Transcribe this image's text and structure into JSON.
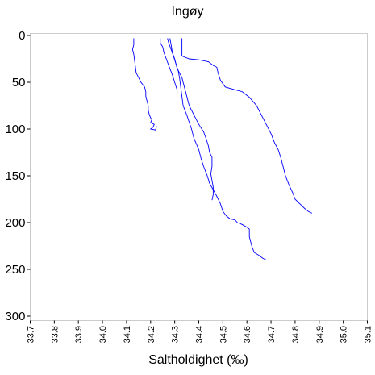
{
  "chart_data": {
    "type": "line",
    "title": "Ingøy",
    "xlabel": "Saltholdighet (‰)",
    "ylabel": "",
    "xlim": [
      33.7,
      35.1
    ],
    "ylim": [
      0,
      300
    ],
    "y_inverted": true,
    "x_ticks": [
      "33.7",
      "33.8",
      "33.9",
      "34.0",
      "34.1",
      "34.2",
      "34.3",
      "34.4",
      "34.5",
      "34.6",
      "34.7",
      "34.8",
      "34.9",
      "35.0",
      "35.1"
    ],
    "y_ticks": [
      "0",
      "50",
      "100",
      "150",
      "200",
      "250",
      "300"
    ],
    "grid": false,
    "legend": "none",
    "line_color": "#0000ff",
    "series": [
      {
        "points": [
          [
            34.13,
            3
          ],
          [
            34.13,
            10
          ],
          [
            34.125,
            15
          ],
          [
            34.13,
            20
          ],
          [
            34.135,
            30
          ],
          [
            34.14,
            40
          ],
          [
            34.15,
            45
          ],
          [
            34.16,
            50
          ],
          [
            34.175,
            55
          ],
          [
            34.18,
            60
          ],
          [
            34.18,
            65
          ],
          [
            34.185,
            70
          ],
          [
            34.19,
            75
          ],
          [
            34.19,
            80
          ],
          [
            34.195,
            85
          ],
          [
            34.2,
            88
          ],
          [
            34.205,
            90
          ],
          [
            34.2,
            93
          ],
          [
            34.215,
            95
          ],
          [
            34.21,
            98
          ],
          [
            34.2,
            100
          ],
          [
            34.22,
            101
          ],
          [
            34.225,
            97
          ]
        ]
      },
      {
        "points": [
          [
            34.24,
            3
          ],
          [
            34.24,
            8
          ],
          [
            34.25,
            12
          ],
          [
            34.255,
            18
          ],
          [
            34.265,
            25
          ],
          [
            34.275,
            32
          ],
          [
            34.29,
            42
          ],
          [
            34.3,
            50
          ],
          [
            34.31,
            58
          ],
          [
            34.31,
            62
          ]
        ]
      },
      {
        "points": [
          [
            34.27,
            3
          ],
          [
            34.275,
            8
          ],
          [
            34.285,
            15
          ],
          [
            34.295,
            22
          ],
          [
            34.305,
            30
          ],
          [
            34.315,
            38
          ],
          [
            34.32,
            45
          ],
          [
            34.325,
            55
          ],
          [
            34.33,
            65
          ],
          [
            34.335,
            75
          ],
          [
            34.35,
            85
          ],
          [
            34.37,
            100
          ],
          [
            34.38,
            110
          ],
          [
            34.4,
            122
          ],
          [
            34.41,
            132
          ],
          [
            34.42,
            140
          ],
          [
            34.435,
            150
          ],
          [
            34.445,
            158
          ],
          [
            34.46,
            165
          ],
          [
            34.475,
            172
          ],
          [
            34.49,
            180
          ],
          [
            34.5,
            188
          ],
          [
            34.515,
            193
          ],
          [
            34.53,
            196
          ],
          [
            34.55,
            197
          ],
          [
            34.56,
            200
          ],
          [
            34.58,
            202
          ],
          [
            34.6,
            205
          ],
          [
            34.61,
            207
          ],
          [
            34.61,
            215
          ],
          [
            34.62,
            225
          ],
          [
            34.63,
            232
          ],
          [
            34.65,
            235
          ],
          [
            34.665,
            238
          ],
          [
            34.68,
            240
          ]
        ]
      },
      {
        "points": [
          [
            34.28,
            3
          ],
          [
            34.285,
            10
          ],
          [
            34.29,
            18
          ],
          [
            34.3,
            25
          ],
          [
            34.31,
            35
          ],
          [
            34.33,
            45
          ],
          [
            34.34,
            55
          ],
          [
            34.35,
            65
          ],
          [
            34.36,
            75
          ],
          [
            34.38,
            85
          ],
          [
            34.4,
            95
          ],
          [
            34.42,
            103
          ],
          [
            34.43,
            110
          ],
          [
            34.44,
            118
          ],
          [
            34.445,
            125
          ],
          [
            34.455,
            130
          ],
          [
            34.455,
            140
          ],
          [
            34.45,
            148
          ],
          [
            34.455,
            155
          ],
          [
            34.46,
            162
          ],
          [
            34.46,
            170
          ],
          [
            34.455,
            176
          ]
        ]
      },
      {
        "points": [
          [
            34.33,
            3
          ],
          [
            34.33,
            15
          ],
          [
            34.33,
            22
          ],
          [
            34.36,
            25
          ],
          [
            34.4,
            26
          ],
          [
            34.44,
            28
          ],
          [
            34.46,
            32
          ],
          [
            34.475,
            34
          ],
          [
            34.48,
            40
          ],
          [
            34.49,
            48
          ],
          [
            34.51,
            55
          ],
          [
            34.55,
            58
          ],
          [
            34.58,
            60
          ],
          [
            34.61,
            66
          ],
          [
            34.64,
            75
          ],
          [
            34.66,
            85
          ],
          [
            34.68,
            95
          ],
          [
            34.7,
            105
          ],
          [
            34.715,
            115
          ],
          [
            34.73,
            122
          ],
          [
            34.74,
            130
          ],
          [
            34.75,
            140
          ],
          [
            34.76,
            150
          ],
          [
            34.775,
            160
          ],
          [
            34.79,
            168
          ],
          [
            34.8,
            175
          ],
          [
            34.82,
            180
          ],
          [
            34.84,
            185
          ],
          [
            34.855,
            188
          ],
          [
            34.87,
            190
          ]
        ]
      }
    ]
  }
}
